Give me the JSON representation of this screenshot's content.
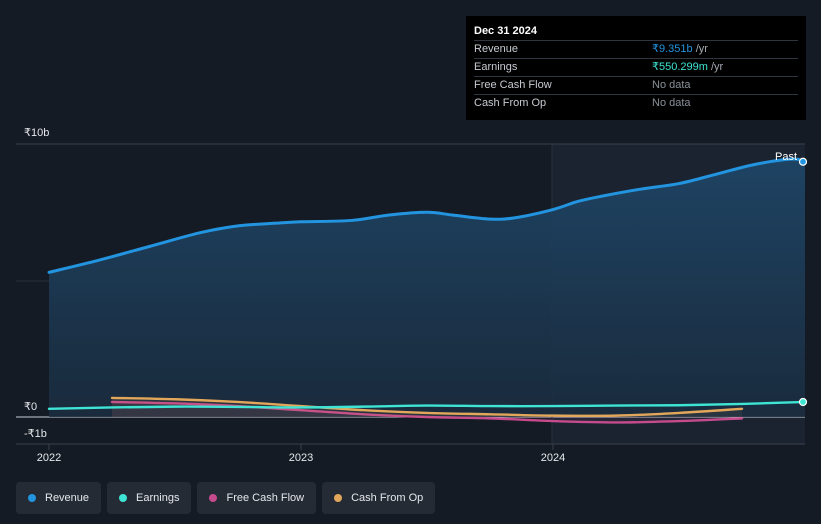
{
  "tooltip": {
    "date": "Dec 31 2024",
    "rows": [
      {
        "label": "Revenue",
        "value": "₹9.351b",
        "unit": " /yr"
      },
      {
        "label": "Earnings",
        "value": "₹550.299m",
        "unit": " /yr"
      },
      {
        "label": "Free Cash Flow",
        "value": "No data"
      },
      {
        "label": "Cash From Op",
        "value": "No data"
      }
    ]
  },
  "past_label": "Past",
  "colors": {
    "revenue": "#2394df",
    "earnings": "#3ee4d4",
    "free_cash_flow": "#c54b8c",
    "cash_from_op": "#e2a75b"
  },
  "chart_data": {
    "type": "line",
    "y_tick_labels": [
      "₹10b",
      "₹0",
      "-₹1b"
    ],
    "x_tick_labels": [
      "2022",
      "2023",
      "2024"
    ],
    "ylim": [
      -1,
      10
    ],
    "series": [
      {
        "name": "Revenue",
        "color": "#2394df",
        "x": [
          2021.95,
          2022.2,
          2022.4,
          2022.6,
          2022.75,
          2022.9,
          2023.0,
          2023.2,
          2023.35,
          2023.5,
          2023.6,
          2023.75,
          2023.85,
          2024.0,
          2024.1,
          2024.2,
          2024.35,
          2024.5,
          2024.65,
          2024.8,
          2024.95,
          2025.0
        ],
        "y": [
          5.3,
          5.75,
          6.25,
          6.75,
          7.0,
          7.1,
          7.15,
          7.2,
          7.4,
          7.5,
          7.4,
          7.25,
          7.3,
          7.6,
          7.9,
          8.1,
          8.35,
          8.55,
          8.9,
          9.25,
          9.45,
          9.35
        ]
      },
      {
        "name": "Earnings",
        "color": "#3ee4d4",
        "x": [
          2021.95,
          2022.25,
          2022.5,
          2022.75,
          2023.0,
          2023.25,
          2023.5,
          2023.75,
          2024.0,
          2024.25,
          2024.5,
          2024.75,
          2025.0
        ],
        "y": [
          0.3,
          0.35,
          0.38,
          0.37,
          0.35,
          0.38,
          0.42,
          0.4,
          0.4,
          0.42,
          0.43,
          0.48,
          0.55
        ]
      },
      {
        "name": "Free Cash Flow",
        "color": "#c54b8c",
        "x": [
          2022.25,
          2022.5,
          2022.75,
          2023.0,
          2023.25,
          2023.5,
          2023.75,
          2024.0,
          2024.25,
          2024.5,
          2024.75
        ],
        "y": [
          0.55,
          0.5,
          0.4,
          0.25,
          0.1,
          0.0,
          -0.05,
          -0.15,
          -0.2,
          -0.15,
          -0.05
        ]
      },
      {
        "name": "Cash From Op",
        "color": "#e2a75b",
        "x": [
          2022.25,
          2022.5,
          2022.75,
          2023.0,
          2023.25,
          2023.5,
          2023.75,
          2024.0,
          2024.25,
          2024.5,
          2024.75
        ],
        "y": [
          0.7,
          0.65,
          0.55,
          0.4,
          0.25,
          0.15,
          0.1,
          0.05,
          0.05,
          0.15,
          0.3
        ]
      }
    ]
  },
  "legend": [
    {
      "label": "Revenue",
      "color": "#2394df"
    },
    {
      "label": "Earnings",
      "color": "#3ee4d4"
    },
    {
      "label": "Free Cash Flow",
      "color": "#c54b8c"
    },
    {
      "label": "Cash From Op",
      "color": "#e2a75b"
    }
  ]
}
